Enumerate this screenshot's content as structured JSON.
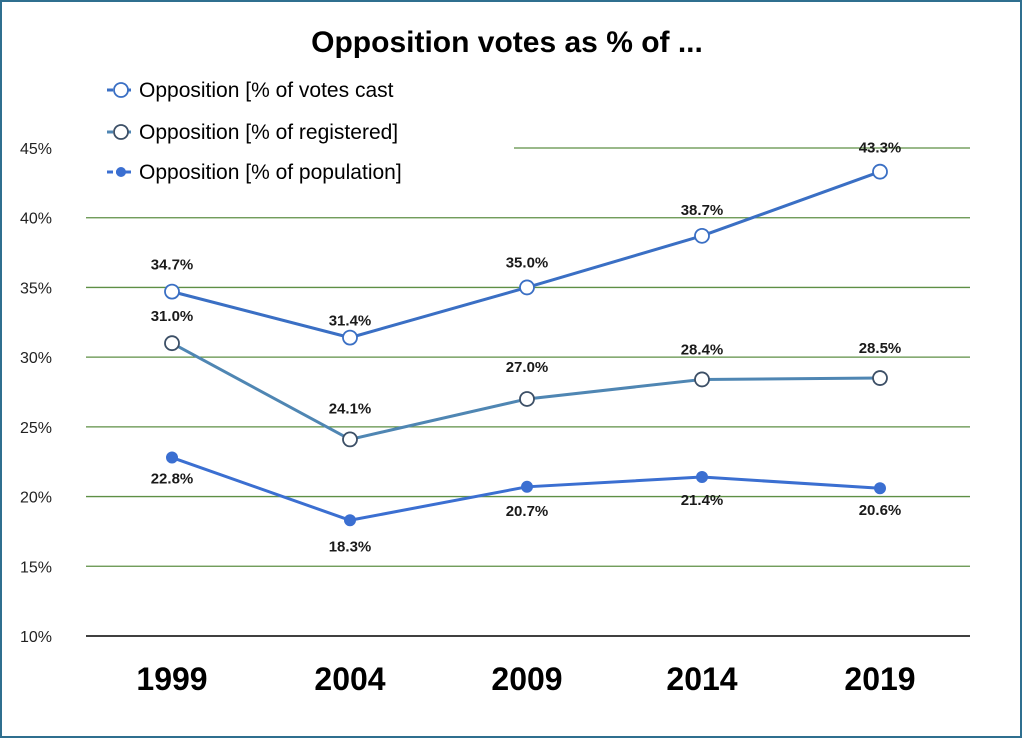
{
  "chart_data": {
    "type": "line",
    "title": "Opposition votes as % of ...",
    "xlabel": "",
    "ylabel": "",
    "categories": [
      "1999",
      "2004",
      "2009",
      "2014",
      "2019"
    ],
    "ylim": [
      10,
      45
    ],
    "yticks": [
      "10%",
      "15%",
      "20%",
      "25%",
      "30%",
      "35%",
      "40%",
      "45%"
    ],
    "grid": true,
    "legend_position": "top-left",
    "series": [
      {
        "name": "Opposition [% of votes cast]",
        "legend_label": "Opposition [% of votes cast",
        "values": [
          34.7,
          31.4,
          35.0,
          38.7,
          43.3
        ],
        "labels": [
          "34.7%",
          "31.4%",
          "35.0%",
          "38.7%",
          "43.3%"
        ],
        "marker": "open-circle",
        "color": "#3a6fc4"
      },
      {
        "name": "Opposition [% of registered]",
        "legend_label": "Opposition [% of registered]",
        "values": [
          31.0,
          24.1,
          27.0,
          28.4,
          28.5
        ],
        "labels": [
          "31.0%",
          "24.1%",
          "27.0%",
          "28.4%",
          "28.5%"
        ],
        "marker": "open-circle",
        "color": "#4f86b3"
      },
      {
        "name": "Opposition [% of population]",
        "legend_label": "Opposition [% of population]",
        "values": [
          22.8,
          18.3,
          20.7,
          21.4,
          20.6
        ],
        "labels": [
          "22.8%",
          "18.3%",
          "20.7%",
          "21.4%",
          "20.6%"
        ],
        "marker": "filled-circle",
        "color": "#3b6fd1"
      }
    ],
    "colors": {
      "grid": "#5e8f45",
      "axis": "#000000",
      "frame": "#2f6f8f"
    }
  }
}
